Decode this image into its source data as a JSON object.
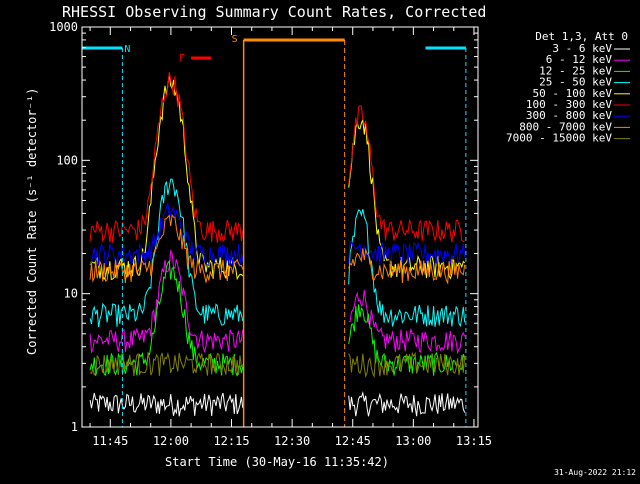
{
  "colors": {
    "background": "#000000",
    "axes": "#ffffff",
    "night": "#00e5ff",
    "saa": "#ff8c00",
    "flare": "#ff0000"
  },
  "chart_data": {
    "type": "line",
    "title": "RHESSI Observing Summary Count Rates, Corrected",
    "xlabel": "Start Time (30-May-16 11:35:42)",
    "ylabel": "Corrected Count Rate (s⁻¹ detector⁻¹)",
    "y_scale": "log",
    "ylim": [
      1,
      1000
    ],
    "xlim": [
      "11:38",
      "13:16"
    ],
    "x_ticks": [
      "11:45",
      "12:00",
      "12:15",
      "12:30",
      "12:45",
      "13:00",
      "13:15"
    ],
    "y_ticks": [
      "1",
      "10",
      "100",
      "1000"
    ],
    "footer_date": "31-Aug-2022 21:12",
    "legend": {
      "header": "Det 1,3, Att 0",
      "placement": "right"
    },
    "series": [
      {
        "name": "3 - 6 keV",
        "color": "#ffffff",
        "level": 1.5
      },
      {
        "name": "6 - 12 keV",
        "color": "#ff00ff",
        "level": 4.5,
        "peak": 18
      },
      {
        "name": "12 - 25 keV",
        "color": "#00ff00",
        "level": 3.0,
        "peak": 15
      },
      {
        "name": "25 - 50 keV",
        "color": "#00ffff",
        "level": 7.0,
        "peak": 70
      },
      {
        "name": "50 - 100 keV",
        "color": "#ffff00",
        "level": 16,
        "peak": 380
      },
      {
        "name": "100 - 300 keV",
        "color": "#ff0000",
        "level": 30,
        "peak": 400
      },
      {
        "name": "300 - 800 keV",
        "color": "#0000ff",
        "level": 20,
        "peak": 42
      },
      {
        "name": "800 - 7000 keV",
        "color": "#ff8000",
        "level": 15,
        "peak": 35
      },
      {
        "name": "7000 - 15000 keV",
        "color": "#808000",
        "level": 3.0
      }
    ],
    "flags": {
      "N_label": "N",
      "S_label": "S",
      "F_label": "F",
      "night_intervals": [
        [
          "11:38",
          "11:48"
        ],
        [
          "13:03",
          "13:13"
        ]
      ],
      "saa_interval": [
        "12:18",
        "12:43"
      ],
      "flare_interval": [
        "12:05",
        "12:10"
      ]
    }
  }
}
